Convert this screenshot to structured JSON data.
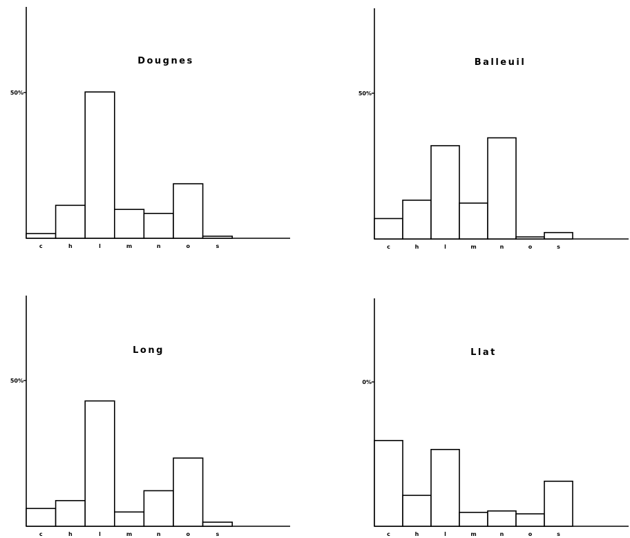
{
  "chart_data": [
    {
      "type": "bar",
      "title": "Dougnes",
      "categories": [
        "c",
        "h",
        "l",
        "m",
        "n",
        "o",
        "s"
      ],
      "values": [
        1.6,
        11.3,
        50.2,
        9.9,
        8.5,
        18.7,
        0.7
      ],
      "ytick_label": "50%",
      "ylim": [
        0,
        78
      ],
      "grid": false
    },
    {
      "type": "bar",
      "title": "Balleuil",
      "categories": [
        "c",
        "h",
        "l",
        "m",
        "n",
        "o",
        "s"
      ],
      "values": [
        7.0,
        13.3,
        32.0,
        12.3,
        34.7,
        0.7,
        2.2
      ],
      "ytick_label": "50%",
      "ylim": [
        0,
        78
      ],
      "grid": false
    },
    {
      "type": "bar",
      "title": "Long",
      "categories": [
        "c",
        "h",
        "l",
        "m",
        "n",
        "o",
        "s"
      ],
      "values": [
        6.1,
        8.8,
        43.0,
        4.9,
        12.2,
        23.4,
        1.4
      ],
      "ytick_label": "50%",
      "ylim": [
        0,
        78
      ],
      "grid": false
    },
    {
      "type": "bar",
      "title": "Llat",
      "categories": [
        "c",
        "h",
        "l",
        "m",
        "n",
        "o",
        "s"
      ],
      "values": [
        29.7,
        10.7,
        26.6,
        4.8,
        5.3,
        4.3,
        15.6
      ],
      "ytick_label": "0%",
      "ylim": [
        0,
        78
      ],
      "grid": false
    }
  ]
}
